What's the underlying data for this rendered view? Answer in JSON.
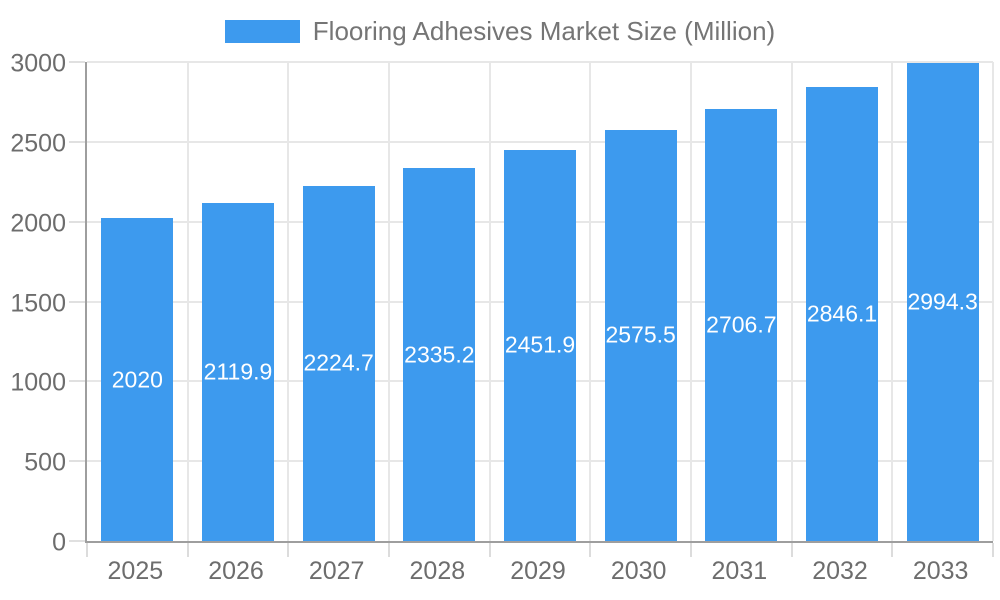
{
  "legend": {
    "label": "Flooring Adhesives Market Size (Million)"
  },
  "colors": {
    "bar": "#3d9aee",
    "bar_label": "#ffffff",
    "axis_line": "#9e9e9e",
    "grid_line": "#e7e7e7",
    "tick_label": "#6d6d6d",
    "legend_text": "#757575",
    "background": "#ffffff"
  },
  "chart_data": {
    "type": "bar",
    "title": "Flooring Adhesives Market Size (Million)",
    "categories": [
      "2025",
      "2026",
      "2027",
      "2028",
      "2029",
      "2030",
      "2031",
      "2032",
      "2033"
    ],
    "values": [
      2020,
      2119.9,
      2224.7,
      2335.2,
      2451.9,
      2575.5,
      2706.7,
      2846.1,
      2994.3
    ],
    "value_labels": [
      "2020",
      "2119.9",
      "2224.7",
      "2335.2",
      "2451.9",
      "2575.5",
      "2706.7",
      "2846.1",
      "2994.3"
    ],
    "xlabel": "",
    "ylabel": "",
    "ylim": [
      0,
      3000
    ],
    "ytick_step": 500,
    "ytick_labels": [
      "0",
      "500",
      "1000",
      "1500",
      "2000",
      "2500",
      "3000"
    ],
    "grid": true,
    "legend_position": "top",
    "bar_labels_visible": true,
    "bar_label_position": "center"
  }
}
